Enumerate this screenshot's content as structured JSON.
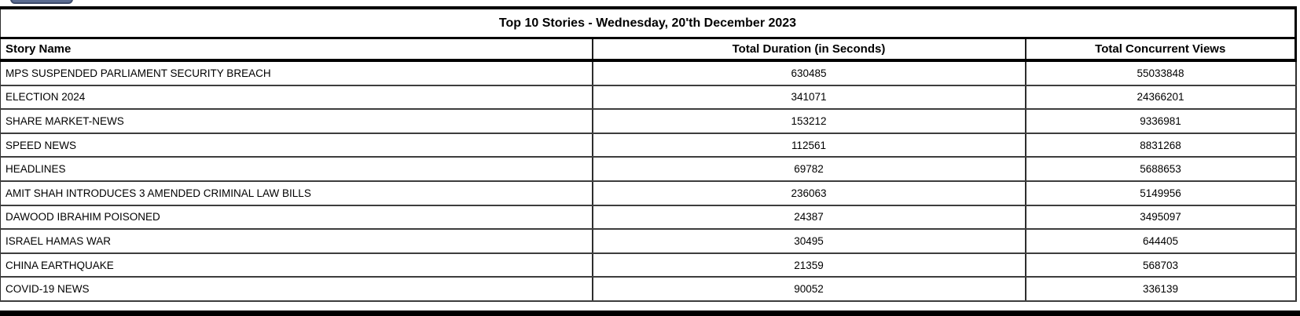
{
  "table": {
    "title": "Top 10 Stories - Wednesday, 20'th December 2023",
    "columns": [
      "Story Name",
      "Total Duration (in Seconds)",
      "Total Concurrent Views"
    ],
    "rows": [
      {
        "story": "MPS SUSPENDED PARLIAMENT SECURITY BREACH",
        "duration": "630485",
        "views": "55033848"
      },
      {
        "story": "ELECTION 2024",
        "duration": "341071",
        "views": "24366201"
      },
      {
        "story": "SHARE MARKET-NEWS",
        "duration": "153212",
        "views": "9336981"
      },
      {
        "story": "SPEED NEWS",
        "duration": "112561",
        "views": "8831268"
      },
      {
        "story": "HEADLINES",
        "duration": "69782",
        "views": "5688653"
      },
      {
        "story": "AMIT SHAH INTRODUCES 3 AMENDED CRIMINAL LAW BILLS",
        "duration": "236063",
        "views": "5149956"
      },
      {
        "story": "DAWOOD IBRAHIM POISONED",
        "duration": "24387",
        "views": "3495097"
      },
      {
        "story": "ISRAEL HAMAS WAR",
        "duration": "30495",
        "views": "644405"
      },
      {
        "story": "CHINA EARTHQUAKE",
        "duration": "21359",
        "views": "568703"
      },
      {
        "story": "COVID-19 NEWS",
        "duration": "90052",
        "views": "336139"
      }
    ]
  },
  "colors": {
    "border_thick": "#000000",
    "border_thin": "#3d3d3d",
    "button_fill": "#5b6c91",
    "button_border": "#3e4c6b",
    "text": "#000000",
    "background": "#ffffff"
  }
}
